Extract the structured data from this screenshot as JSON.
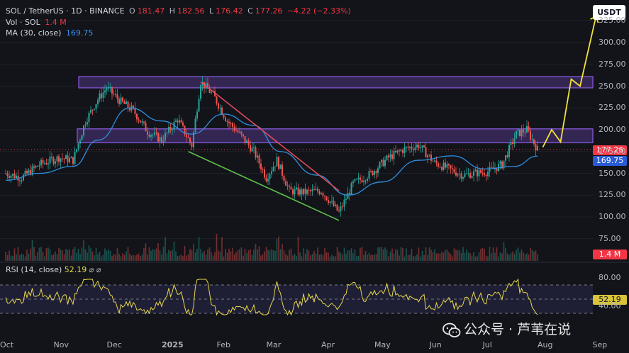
{
  "header": {
    "symbol": "SOL / TetherUS · 1D · BINANCE",
    "open_label": "O",
    "open": "181.47",
    "high_label": "H",
    "high": "182.56",
    "low_label": "L",
    "low": "176.42",
    "close_label": "C",
    "close": "177.26",
    "change": "−4.22 (−2.33%)",
    "volume_label": "Vol · SOL",
    "volume": "1.4 M",
    "ma_label": "MA (30, close)",
    "ma_value": "169.75"
  },
  "rsi_header": {
    "label": "RSI (14, close)",
    "value": "52.19",
    "extra": "⌀ ⌀"
  },
  "currency_badge": "USDT",
  "price_tags": {
    "last_price": "177.26",
    "ma": "169.75",
    "volume": "1.4 M",
    "rsi": "52.19"
  },
  "watermark": "公众号 · 芦苇在说",
  "colors": {
    "up": "#26a69a",
    "down": "#ef5350",
    "ma": "#2f8fe0",
    "zone": "#7b4fd0",
    "trend_down": "#e04a5a",
    "trend_up": "#5fbf4a",
    "projection": "#f2e23a",
    "rsi": "#e8d94a"
  },
  "chart_data": {
    "type": "candlestick",
    "title": "SOL / TetherUS · 1D · BINANCE",
    "y_axis": {
      "ticks": [
        75,
        100,
        125,
        150,
        175,
        200,
        225,
        250,
        275,
        300,
        325
      ],
      "tick_labels": [
        "75.00",
        "100.00",
        "125.00",
        "150.00",
        "175.00",
        "200.00",
        "225.00",
        "250.00",
        "275.00",
        "300.00",
        "325.00"
      ],
      "range": [
        62,
        335
      ]
    },
    "x_axis": {
      "tick_labels": [
        "Oct",
        "Nov",
        "Dec",
        "2025",
        "Feb",
        "Mar",
        "Apr",
        "May",
        "Jun",
        "Jul",
        "Aug",
        "Sep"
      ]
    },
    "price_path": {
      "dates": [
        "2024-10-01",
        "2024-10-10",
        "2024-10-20",
        "2024-10-31",
        "2024-11-08",
        "2024-11-15",
        "2024-11-22",
        "2024-11-27",
        "2024-12-05",
        "2024-12-12",
        "2024-12-20",
        "2024-12-28",
        "2025-01-06",
        "2025-01-14",
        "2025-01-19",
        "2025-01-26",
        "2025-02-03",
        "2025-02-10",
        "2025-02-18",
        "2025-02-25",
        "2025-03-03",
        "2025-03-10",
        "2025-03-18",
        "2025-03-28",
        "2025-04-07",
        "2025-04-15",
        "2025-04-25",
        "2025-05-05",
        "2025-05-14",
        "2025-05-22",
        "2025-05-31",
        "2025-06-08",
        "2025-06-16",
        "2025-06-22",
        "2025-06-30",
        "2025-07-08",
        "2025-07-16",
        "2025-07-22",
        "2025-07-28"
      ],
      "close": [
        150,
        145,
        160,
        168,
        165,
        210,
        235,
        248,
        232,
        222,
        198,
        188,
        212,
        182,
        255,
        240,
        210,
        195,
        175,
        145,
        165,
        130,
        128,
        130,
        105,
        138,
        150,
        168,
        178,
        182,
        162,
        155,
        148,
        150,
        152,
        160,
        195,
        200,
        177.26
      ]
    },
    "ma30": {
      "dates": [
        "2024-10-01",
        "2024-10-20",
        "2024-11-08",
        "2024-11-22",
        "2024-12-10",
        "2024-12-28",
        "2025-01-14",
        "2025-02-01",
        "2025-02-18",
        "2025-03-05",
        "2025-03-25",
        "2025-04-12",
        "2025-05-01",
        "2025-05-22",
        "2025-06-10",
        "2025-06-28",
        "2025-07-15",
        "2025-07-28"
      ],
      "values": [
        142,
        150,
        158,
        188,
        225,
        210,
        195,
        218,
        205,
        175,
        148,
        125,
        140,
        165,
        170,
        155,
        158,
        169.75
      ]
    },
    "resistance_zones": [
      {
        "low": 248,
        "high": 261
      },
      {
        "low": 185,
        "high": 201
      }
    ],
    "trendlines": [
      {
        "name": "descending resistance",
        "from": {
          "date": "2025-01-19",
          "price": 255
        },
        "to": {
          "date": "2025-04-07",
          "price": 130
        }
      },
      {
        "name": "descending support",
        "from": {
          "date": "2025-01-12",
          "price": 175
        },
        "to": {
          "date": "2025-04-07",
          "price": 96
        }
      }
    ],
    "projection": {
      "dates": [
        "2025-07-31",
        "2025-08-05",
        "2025-08-10",
        "2025-08-16",
        "2025-08-21",
        "2025-08-30"
      ],
      "values": [
        180,
        200,
        186,
        258,
        250,
        330
      ]
    },
    "last_price": 177.26,
    "ma_last": 169.75,
    "volume_last": "1.4 M",
    "rsi": {
      "label": "RSI (14, close)",
      "value": 52.19,
      "levels": [
        30,
        50,
        70
      ],
      "tick_labels": [
        "80.00",
        "40.00"
      ]
    }
  }
}
